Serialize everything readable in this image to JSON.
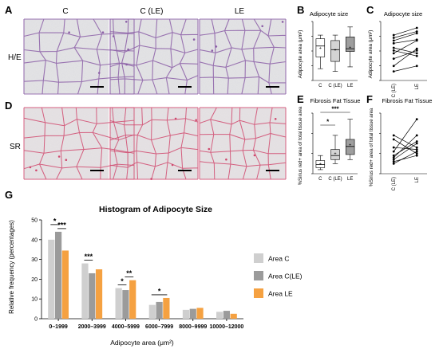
{
  "panels": {
    "A": "A",
    "B": "B",
    "C": "C",
    "D": "D",
    "E": "E",
    "F": "F",
    "G": "G"
  },
  "micro": {
    "col_labels": [
      "C",
      "C (LE)",
      "LE"
    ],
    "row_labels": [
      "H/E",
      "SR"
    ]
  },
  "colors": {
    "area_c": "#cfcfcf",
    "area_cle": "#9b9b9b",
    "area_le": "#f5a141",
    "he_stain": "#8a5aa6",
    "sr_stain": "#d2436a"
  },
  "chart_data": [
    {
      "id": "B",
      "type": "box",
      "title": "Adipocyte size",
      "ylabel": "Adipocyte area (μm²)",
      "categories": [
        "C",
        "C (LE)",
        "LE"
      ],
      "box_colors": [
        "#ffffff",
        "#d4d4d4",
        "#9e9e9e"
      ],
      "boxes": [
        {
          "min": 1300,
          "q1": 2600,
          "median": 3800,
          "q3": 4600,
          "max": 5000,
          "mean": 3600
        },
        {
          "min": 1000,
          "q1": 2100,
          "median": 3400,
          "q3": 4400,
          "max": 5000,
          "mean": 3400
        },
        {
          "min": 1500,
          "q1": 3200,
          "median": 3500,
          "q3": 4800,
          "max": 5900,
          "mean": 3700
        }
      ],
      "ylim": [
        0,
        6500
      ]
    },
    {
      "id": "C",
      "type": "line",
      "title": "Adipocyte size",
      "ylabel": "Adipocyte area (μm²)",
      "categories": [
        "C (LE)",
        "LE"
      ],
      "pairs": [
        [
          5000,
          5800
        ],
        [
          4700,
          5400
        ],
        [
          4400,
          5200
        ],
        [
          4100,
          4500
        ],
        [
          3600,
          3000
        ],
        [
          3300,
          2700
        ],
        [
          3000,
          4400
        ],
        [
          2400,
          3300
        ],
        [
          1600,
          3500
        ],
        [
          1000,
          1600
        ]
      ],
      "ylim": [
        0,
        6500
      ]
    },
    {
      "id": "E",
      "type": "box",
      "title": "Fibrosis Fat Tissue",
      "ylabel": "%Sirius red+ area of total tissue area",
      "categories": [
        "C",
        "C (LE)",
        "LE"
      ],
      "box_colors": [
        "#ffffff",
        "#d4d4d4",
        "#9e9e9e"
      ],
      "boxes": [
        {
          "min": 2,
          "q1": 3,
          "median": 4.5,
          "q3": 6.5,
          "max": 9,
          "mean": 5
        },
        {
          "min": 5,
          "q1": 7,
          "median": 9,
          "q3": 12,
          "max": 19,
          "mean": 10
        },
        {
          "min": 7,
          "q1": 9.5,
          "median": 13.5,
          "q3": 17,
          "max": 27,
          "mean": 14.5
        }
      ],
      "significance": [
        {
          "from": 0,
          "to": 1,
          "label": "*"
        },
        {
          "from": 0,
          "to": 2,
          "label": "***"
        }
      ],
      "ylim": [
        0,
        30
      ]
    },
    {
      "id": "F",
      "type": "line",
      "title": "Fibrosis Fat Tissue",
      "ylabel": "%Sirius red+ area of total tissue area",
      "categories": [
        "C (LE)",
        "LE"
      ],
      "pairs": [
        [
          19,
          13
        ],
        [
          17,
          10
        ],
        [
          13,
          12
        ],
        [
          11,
          27
        ],
        [
          9,
          16
        ],
        [
          8,
          19
        ],
        [
          7,
          15
        ],
        [
          6,
          9
        ],
        [
          5,
          11
        ]
      ],
      "ylim": [
        0,
        30
      ]
    },
    {
      "id": "G",
      "type": "bar",
      "title": "Histogram of Adipocyte Size",
      "xlabel": "Adipocyte area (μm²)",
      "ylabel": "Relative frequency (percentages)",
      "categories": [
        "0–1999",
        "2000–3999",
        "4000–5999",
        "6000–7999",
        "8000–9999",
        "10000–12000"
      ],
      "series": [
        {
          "name": "Area C",
          "values": [
            40,
            28,
            15.5,
            7,
            4.5,
            3.5
          ]
        },
        {
          "name": "Area C(LE)",
          "values": [
            44,
            23,
            14.5,
            8.5,
            5,
            4
          ]
        },
        {
          "name": "Area LE",
          "values": [
            34.5,
            25,
            19.5,
            10.5,
            5.5,
            2.5
          ]
        }
      ],
      "ylim": [
        0,
        50
      ],
      "yticks": [
        0,
        10,
        20,
        30,
        40,
        50
      ],
      "significance": [
        {
          "cat": 0,
          "from": 0,
          "to": 1,
          "label": "*"
        },
        {
          "cat": 0,
          "from": 1,
          "to": 2,
          "label": "***"
        },
        {
          "cat": 1,
          "from": 0,
          "to": 1,
          "label": "***"
        },
        {
          "cat": 2,
          "from": 0,
          "to": 1,
          "label": "*"
        },
        {
          "cat": 2,
          "from": 1,
          "to": 2,
          "label": "**"
        },
        {
          "cat": 3,
          "from": 0,
          "to": 2,
          "label": "*"
        }
      ],
      "legend_position": "right"
    }
  ]
}
